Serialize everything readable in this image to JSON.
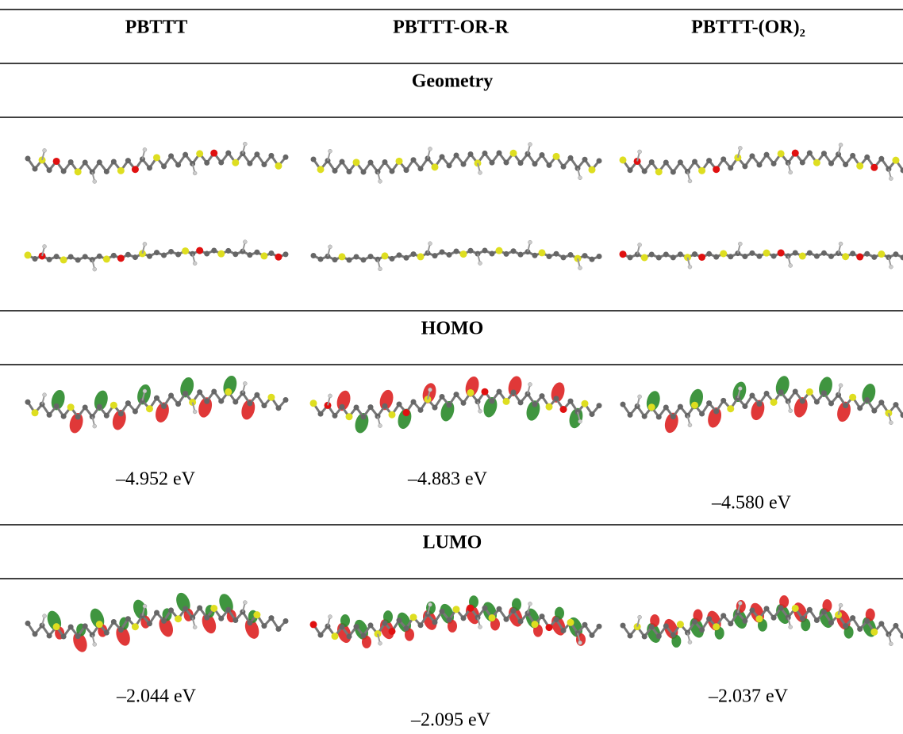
{
  "table": {
    "columns": [
      "PBTTT",
      "PBTTT-OR-R",
      "PBTTT-(OR)₂"
    ],
    "sections": [
      {
        "title": "Geometry"
      },
      {
        "title": "HOMO",
        "values": [
          "–4.952 eV",
          "–4.883 eV",
          "–4.580 eV"
        ]
      },
      {
        "title": "LUMO",
        "values": [
          "–2.044 eV",
          "–2.095 eV",
          "–2.037 eV"
        ]
      }
    ]
  }
}
